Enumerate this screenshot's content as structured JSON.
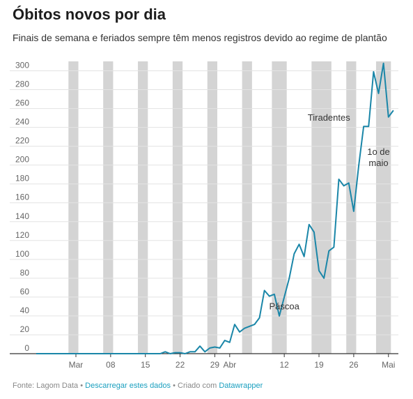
{
  "title": "Óbitos novos por dia",
  "subtitle": "Finais de semana e feriados sempre têm menos registros devido ao regime de plantão",
  "footer": {
    "source": "Fonte: Lagom Data",
    "sep1": " • ",
    "download_link": "Descarregar estes dados",
    "sep2": " • ",
    "made_with": "Criado com ",
    "tool_link": "Datawrapper"
  },
  "colors": {
    "line": "#1a86a8",
    "band": "#d4d4d4",
    "grid": "#e3e3e3",
    "axis": "#333333"
  },
  "chart_data": {
    "type": "line",
    "title": "Óbitos novos por dia",
    "xlabel": "",
    "ylabel": "",
    "x_range": [
      "2020-02-22",
      "2020-05-05"
    ],
    "ylim": [
      0,
      310
    ],
    "yticks": [
      0,
      20,
      40,
      60,
      80,
      100,
      120,
      140,
      160,
      180,
      200,
      220,
      240,
      260,
      280,
      300
    ],
    "xticks": [
      {
        "date": "2020-03-01",
        "label": "Mar"
      },
      {
        "date": "2020-03-08",
        "label": "08"
      },
      {
        "date": "2020-03-15",
        "label": "15"
      },
      {
        "date": "2020-03-22",
        "label": "22"
      },
      {
        "date": "2020-03-29",
        "label": "29"
      },
      {
        "date": "2020-04-01",
        "label": "Abr"
      },
      {
        "date": "2020-04-12",
        "label": "12"
      },
      {
        "date": "2020-04-19",
        "label": "19"
      },
      {
        "date": "2020-04-26",
        "label": "26"
      },
      {
        "date": "2020-05-03",
        "label": "Mai"
      }
    ],
    "grid": true,
    "weekend_holiday_bands": [
      [
        "2020-02-29",
        "2020-03-01"
      ],
      [
        "2020-03-07",
        "2020-03-08"
      ],
      [
        "2020-03-14",
        "2020-03-15"
      ],
      [
        "2020-03-21",
        "2020-03-22"
      ],
      [
        "2020-03-28",
        "2020-03-29"
      ],
      [
        "2020-04-04",
        "2020-04-05"
      ],
      [
        "2020-04-10",
        "2020-04-12"
      ],
      [
        "2020-04-18",
        "2020-04-21"
      ],
      [
        "2020-04-25",
        "2020-04-26"
      ],
      [
        "2020-05-01",
        "2020-05-03"
      ]
    ],
    "annotations": [
      {
        "date": "2020-04-12",
        "y": 47,
        "lines": [
          "Páscoa"
        ]
      },
      {
        "date": "2020-04-21",
        "y": 247,
        "lines": [
          "Tiradentes"
        ]
      },
      {
        "date": "2020-05-01",
        "y": 211,
        "lines": [
          "1o de",
          "maio"
        ]
      }
    ],
    "series": [
      {
        "values": [
          [
            "2020-02-22",
            0
          ],
          [
            "2020-02-23",
            0
          ],
          [
            "2020-02-24",
            0
          ],
          [
            "2020-02-25",
            0
          ],
          [
            "2020-02-26",
            0
          ],
          [
            "2020-02-27",
            0
          ],
          [
            "2020-02-28",
            0
          ],
          [
            "2020-02-29",
            0
          ],
          [
            "2020-03-01",
            0
          ],
          [
            "2020-03-02",
            0
          ],
          [
            "2020-03-03",
            0
          ],
          [
            "2020-03-04",
            0
          ],
          [
            "2020-03-05",
            0
          ],
          [
            "2020-03-06",
            0
          ],
          [
            "2020-03-07",
            0
          ],
          [
            "2020-03-08",
            0
          ],
          [
            "2020-03-09",
            0
          ],
          [
            "2020-03-10",
            0
          ],
          [
            "2020-03-11",
            0
          ],
          [
            "2020-03-12",
            0
          ],
          [
            "2020-03-13",
            0
          ],
          [
            "2020-03-14",
            0
          ],
          [
            "2020-03-15",
            0
          ],
          [
            "2020-03-16",
            0
          ],
          [
            "2020-03-17",
            0
          ],
          [
            "2020-03-18",
            0
          ],
          [
            "2020-03-19",
            2
          ],
          [
            "2020-03-20",
            0
          ],
          [
            "2020-03-21",
            1
          ],
          [
            "2020-03-22",
            1
          ],
          [
            "2020-03-23",
            0
          ],
          [
            "2020-03-24",
            2
          ],
          [
            "2020-03-25",
            2
          ],
          [
            "2020-03-26",
            8
          ],
          [
            "2020-03-27",
            2
          ],
          [
            "2020-03-28",
            6
          ],
          [
            "2020-03-29",
            7
          ],
          [
            "2020-03-30",
            6
          ],
          [
            "2020-03-31",
            14
          ],
          [
            "2020-04-01",
            12
          ],
          [
            "2020-04-02",
            31
          ],
          [
            "2020-04-03",
            23
          ],
          [
            "2020-04-04",
            27
          ],
          [
            "2020-04-05",
            29
          ],
          [
            "2020-04-06",
            31
          ],
          [
            "2020-04-07",
            38
          ],
          [
            "2020-04-08",
            67
          ],
          [
            "2020-04-09",
            61
          ],
          [
            "2020-04-10",
            63
          ],
          [
            "2020-04-11",
            40
          ],
          [
            "2020-04-12",
            60
          ],
          [
            "2020-04-13",
            80
          ],
          [
            "2020-04-14",
            106
          ],
          [
            "2020-04-15",
            116
          ],
          [
            "2020-04-16",
            103
          ],
          [
            "2020-04-17",
            137
          ],
          [
            "2020-04-18",
            129
          ],
          [
            "2020-04-19",
            88
          ],
          [
            "2020-04-20",
            80
          ],
          [
            "2020-04-21",
            109
          ],
          [
            "2020-04-22",
            113
          ],
          [
            "2020-04-23",
            185
          ],
          [
            "2020-04-24",
            178
          ],
          [
            "2020-04-25",
            181
          ],
          [
            "2020-04-26",
            151
          ],
          [
            "2020-04-27",
            199
          ],
          [
            "2020-04-28",
            241
          ],
          [
            "2020-04-29",
            241
          ],
          [
            "2020-04-30",
            299
          ],
          [
            "2020-05-01",
            276
          ],
          [
            "2020-05-02",
            308
          ],
          [
            "2020-05-03",
            251
          ],
          [
            "2020-05-04",
            258
          ]
        ]
      }
    ]
  }
}
